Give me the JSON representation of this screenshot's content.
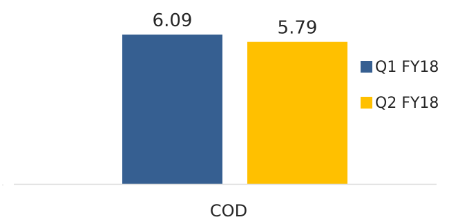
{
  "chart_data": {
    "type": "bar",
    "categories": [
      "COD"
    ],
    "series": [
      {
        "name": "Q1 FY18",
        "values": [
          6.09
        ],
        "color": "#365F91"
      },
      {
        "name": "Q2 FY18",
        "values": [
          5.79
        ],
        "color": "#FFC000"
      }
    ],
    "ylim": [
      0,
      6.09
    ],
    "grid": false,
    "legend_position": "right",
    "data_labels": [
      "6.09",
      "5.79"
    ]
  }
}
